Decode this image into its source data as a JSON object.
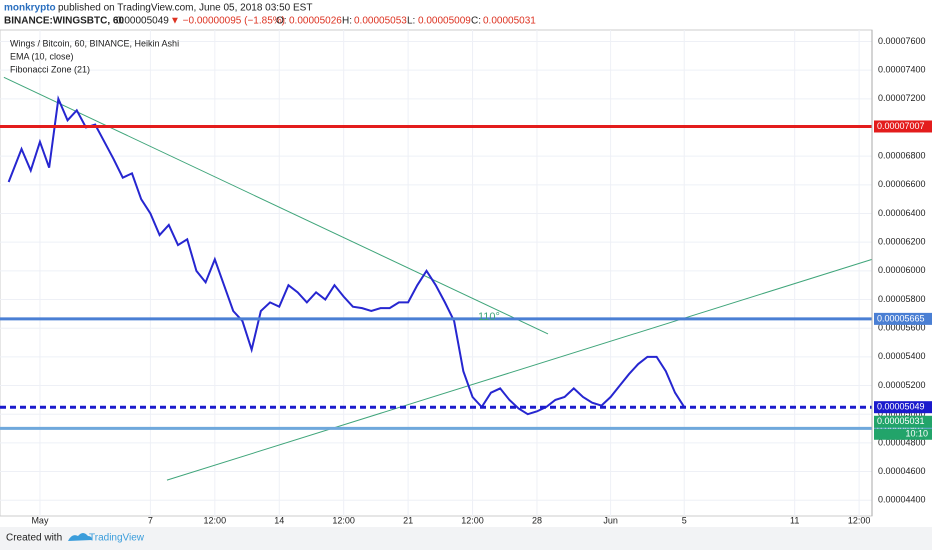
{
  "chart_data": {
    "type": "line",
    "author": "monkrypto",
    "published": "published on TradingView.com, June 05, 2018 03:50 EST",
    "header": {
      "symbol": "BINANCE:WINGSBTC, 60",
      "price": "0.00005049",
      "change": "▼ −0.00000095 (−1.85%)",
      "open_label": "O:",
      "open": "0.00005026",
      "high_label": "H:",
      "high": "0.00005053",
      "low_label": "L:",
      "low": "0.00005009",
      "close_label": "C:",
      "close": "0.00005031"
    },
    "legend": [
      "Wings / Bitcoin, 60, BINANCE, Heikin Ashi",
      "EMA (10, close)",
      "Fibonacci Zone (21)"
    ],
    "annotation": "110°",
    "countdown": "10:10",
    "footer": {
      "created": "Created with",
      "brand": "TradingView"
    },
    "xlim": [
      -2.17,
      45.2
    ],
    "ylim": [
      4.29e-05,
      7.68e-05
    ],
    "grid": true,
    "xticks": [
      {
        "value": 0,
        "label": "May"
      },
      {
        "value": 6,
        "label": "7"
      },
      {
        "value": 9.5,
        "label": "12:00"
      },
      {
        "value": 13,
        "label": "14"
      },
      {
        "value": 16.5,
        "label": "12:00"
      },
      {
        "value": 20,
        "label": "21"
      },
      {
        "value": 23.5,
        "label": "12:00"
      },
      {
        "value": 27,
        "label": "28"
      },
      {
        "value": 31,
        "label": "Jun"
      },
      {
        "value": 35,
        "label": "5"
      },
      {
        "value": 41,
        "label": "11"
      },
      {
        "value": 44.5,
        "label": "12:00"
      }
    ],
    "yticks": [
      {
        "value": 4.4e-05,
        "label": "0.00004400"
      },
      {
        "value": 4.6e-05,
        "label": "0.00004600"
      },
      {
        "value": 4.8e-05,
        "label": "0.00004800"
      },
      {
        "value": 5e-05,
        "label": "0.00005000"
      },
      {
        "value": 5.2e-05,
        "label": "0.00005200"
      },
      {
        "value": 5.4e-05,
        "label": "0.00005400"
      },
      {
        "value": 5.6e-05,
        "label": "0.00005600"
      },
      {
        "value": 5.8e-05,
        "label": "0.00005800"
      },
      {
        "value": 6e-05,
        "label": "0.00006000"
      },
      {
        "value": 6.2e-05,
        "label": "0.00006200"
      },
      {
        "value": 6.4e-05,
        "label": "0.00006400"
      },
      {
        "value": 6.6e-05,
        "label": "0.00006600"
      },
      {
        "value": 6.8e-05,
        "label": "0.00006800"
      },
      {
        "value": 7e-05,
        "label": "0.00007000"
      },
      {
        "value": 7.2e-05,
        "label": "0.00007200"
      },
      {
        "value": 7.4e-05,
        "label": "0.00007400"
      },
      {
        "value": 7.6e-05,
        "label": "0.00007600"
      }
    ],
    "series": [
      {
        "color": "#2626d0",
        "x": [
          -1.7,
          -1,
          -0.5,
          0,
          0.5,
          1,
          1.5,
          2,
          2.5,
          3,
          3.5,
          4,
          4.5,
          5,
          5.5,
          6,
          6.5,
          7,
          7.5,
          8,
          8.5,
          9,
          9.5,
          10,
          10.5,
          11,
          11.5,
          12,
          12.5,
          13,
          13.5,
          14,
          14.5,
          15,
          15.5,
          16,
          16.5,
          17,
          17.5,
          18,
          18.5,
          19,
          19.5,
          20,
          20.5,
          21,
          21.5,
          22,
          22.5,
          23,
          23.5,
          24,
          24.5,
          25,
          25.5,
          26,
          26.5,
          27,
          27.5,
          28,
          28.5,
          29,
          29.5,
          30,
          30.5,
          31,
          31.5,
          32,
          32.5,
          33,
          33.5,
          34,
          34.5,
          35
        ],
        "values": [
          6.62e-05,
          6.85e-05,
          6.7e-05,
          6.9e-05,
          6.72e-05,
          7.2e-05,
          7.05e-05,
          7.12e-05,
          7e-05,
          7.02e-05,
          6.9e-05,
          6.78e-05,
          6.65e-05,
          6.68e-05,
          6.5e-05,
          6.4e-05,
          6.25e-05,
          6.32e-05,
          6.18e-05,
          6.22e-05,
          6e-05,
          5.92e-05,
          6.08e-05,
          5.9e-05,
          5.72e-05,
          5.65e-05,
          5.45e-05,
          5.72e-05,
          5.78e-05,
          5.75e-05,
          5.9e-05,
          5.85e-05,
          5.78e-05,
          5.85e-05,
          5.8e-05,
          5.9e-05,
          5.82e-05,
          5.75e-05,
          5.74e-05,
          5.72e-05,
          5.74e-05,
          5.74e-05,
          5.78e-05,
          5.78e-05,
          5.9e-05,
          6e-05,
          5.9e-05,
          5.78e-05,
          5.65e-05,
          5.3e-05,
          5.12e-05,
          5.05e-05,
          5.15e-05,
          5.18e-05,
          5.1e-05,
          5.04e-05,
          5e-05,
          5.02e-05,
          5.05e-05,
          5.1e-05,
          5.12e-05,
          5.18e-05,
          5.12e-05,
          5.08e-05,
          5.06e-05,
          5.12e-05,
          5.2e-05,
          5.28e-05,
          5.35e-05,
          5.4e-05,
          5.4e-05,
          5.3e-05,
          5.15e-05,
          5.05e-05
        ]
      }
    ],
    "trendlines": [
      {
        "color": "#3fa57a",
        "x": [
          -1.96,
          27.6
        ],
        "values": [
          7.35e-05,
          5.56e-05
        ]
      },
      {
        "color": "#3fa57a",
        "x": [
          6.9,
          45.2
        ],
        "values": [
          4.54e-05,
          6.08e-05
        ]
      }
    ],
    "levels": [
      {
        "value": 7.007e-05,
        "color": "#e31c1c",
        "style": "solid",
        "width": 3
      },
      {
        "value": 5.665e-05,
        "color": "#4a7fd4",
        "style": "solid",
        "width": 3
      },
      {
        "value": 5.049e-05,
        "color": "#1a1acc",
        "style": "dashed",
        "width": 3
      },
      {
        "value": 4.901e-05,
        "color": "#6fa8dc",
        "style": "solid",
        "width": 3
      },
      {
        "value": 5.031e-05,
        "color": "#22a46a",
        "style": "none",
        "width": 0
      }
    ]
  }
}
